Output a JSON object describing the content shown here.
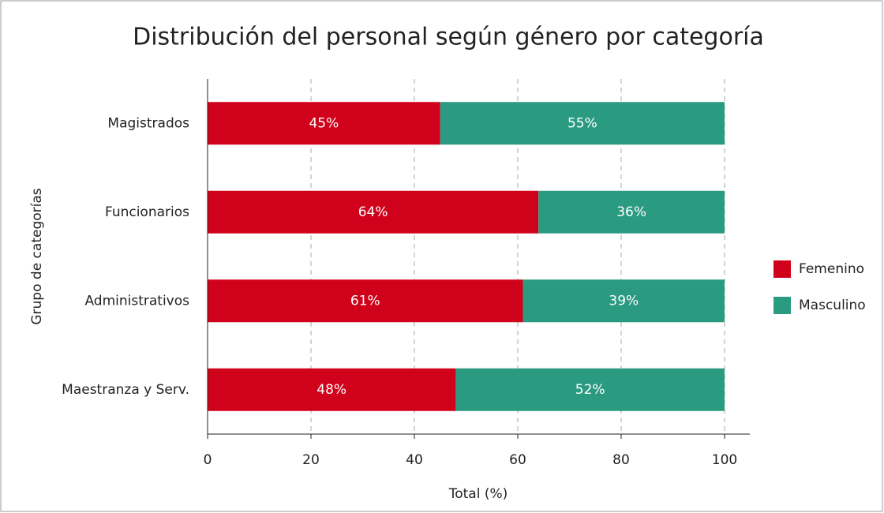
{
  "chart_data": {
    "type": "stacked-barh",
    "title": "Distribución del personal según género por categoría",
    "xlabel": "Total (%)",
    "ylabel": "Grupo de categorías",
    "categories": [
      "Magistrados",
      "Funcionarios",
      "Administrativos",
      "Maestranza y Serv."
    ],
    "series": [
      {
        "name": "Femenino",
        "color": "#d0021b",
        "values": [
          45,
          64,
          61,
          48
        ],
        "value_labels": [
          "45%",
          "64%",
          "61%",
          "48%"
        ]
      },
      {
        "name": "Masculino",
        "color": "#2a9a80",
        "values": [
          55,
          36,
          39,
          52
        ],
        "value_labels": [
          "55%",
          "36%",
          "39%",
          "52%"
        ]
      }
    ],
    "xlim": [
      0,
      100
    ],
    "xticks": [
      0,
      20,
      40,
      60,
      80,
      100
    ],
    "grid": true,
    "legend": "right"
  }
}
